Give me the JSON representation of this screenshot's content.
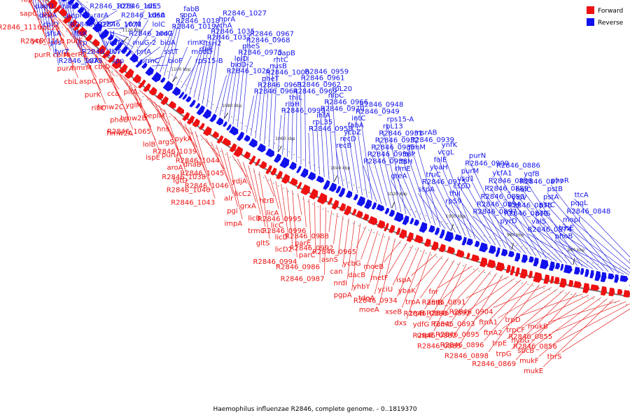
{
  "caption": "Haemophilus influenzae R2846, complete genome. - 0..1819370",
  "colors": {
    "forward": "#ee1111",
    "reverse": "#1111ee",
    "backbone": "#777777",
    "link_forward": "#e82020",
    "link_reverse": "#2a2ae0"
  },
  "legend": [
    {
      "label": "Forward",
      "color": "#ee1111"
    },
    {
      "label": "Reverse",
      "color": "#1111ee"
    }
  ],
  "ticks": [
    "1160 kbp",
    "1140 kbp",
    "1120 kbp",
    "1100 kbp",
    "1080 kbp",
    "1060 kbp",
    "1040 kbp",
    "1020 kbp",
    "1000 kbp",
    "980 kbp",
    "960 kbp",
    "940 kbp",
    "920 kbp"
  ],
  "reverse_labels": [
    "dapD",
    "dedA",
    "cbiO",
    "sfsA",
    "pfs",
    "tyrZ",
    "R2846_1075",
    "radA",
    "pepN",
    "R2846_1077",
    "ftsK",
    "lrp",
    "R2846_1076",
    "lolA",
    "R2846_1078",
    "rarA",
    "R2846_1071",
    "ilvH",
    "yecM",
    "ilvI",
    "lpp",
    "R2846_1055",
    "R2846_1060",
    "yfcM",
    "R2846_1047",
    "muG-2",
    "prfA",
    "prmC",
    "lolE",
    "kdsA",
    "lolC",
    "aroG",
    "bioA",
    "sstT",
    "bioF",
    "R2846_1019",
    "R2846_1018",
    "sppA",
    "fabB",
    "rimK",
    "modD",
    "rpS15-B",
    "rfaE",
    "ftsH2",
    "R2846_1037",
    "R2846_1035",
    "ychA",
    "hprA",
    "R2846_1027",
    "R2846_1026",
    "bioD-2",
    "lolD",
    "R2846_0975",
    "pheS",
    "R2846_0968",
    "R2846_0967",
    "R2846_0964",
    "R2846_0963",
    "pheT",
    "R2846_1000",
    "nusB",
    "rhtC",
    "dapB",
    "R2846_0999",
    "ribH",
    "thiL",
    "R2846_0969",
    "R2846_0962",
    "R2846_0961",
    "R2846_0959",
    "R2846_0958",
    "rpL35",
    "ihfA",
    "R2846_0970",
    "R2846_0966",
    "nlpC",
    "rpL20",
    "recB",
    "recD",
    "ycbZ",
    "fabA",
    "intC",
    "R2846_0949",
    "R2846_0948",
    "R2846_0938",
    "R2846_0936",
    "R2846_0935",
    "R2846_0932",
    "R2846_0931",
    "rpL13",
    "rps15-A",
    "greA",
    "rlmE",
    "ftsH",
    "folP",
    "glmM",
    "R2846_0939",
    "msrAB",
    "sspA",
    "R2846_0915",
    "truC",
    "yoaH",
    "folE",
    "vcgL",
    "ynfK",
    "rpS9",
    "thiI",
    "cspD",
    "usg1",
    "purM",
    "R2846_0900",
    "purN",
    "R2846_0897",
    "R2846_0894",
    "R2846_0890",
    "R2846_0889",
    "R2846_0888",
    "ycfA1",
    "R2846_0886",
    "pyrD",
    "R2846_0879",
    "R2846_0876",
    "yciV",
    "holC",
    "R2846_0877",
    "yqfB",
    "R2846_0874",
    "valS",
    "pstS",
    "pstC",
    "pstA",
    "pstB",
    "phoR",
    "phoB",
    "tusE",
    "mopI",
    "R2846_0848",
    "pqqL",
    "ttcA"
  ],
  "forward_labels": [
    "lctP",
    "fbp",
    "sapC",
    "R2846_1116",
    "ycjX",
    "purR",
    "ppc",
    "rpL25",
    "R2846_1110",
    "cbiM",
    "purA",
    "cbiL",
    "purE",
    "merR2",
    "hmrM",
    "aspC",
    "purK",
    "ribC",
    "cbiQ",
    "prsA",
    "cca",
    "hmw2C",
    "phoU",
    "hmw2A",
    "pitA",
    "yglM",
    "hmw2B",
    "R2846_1065",
    "lolB",
    "ispE",
    "bepIM",
    "hns",
    "argS",
    "purU",
    "aroA",
    "lgtD",
    "pykA",
    "R2846_1039",
    "dnaB",
    "R2846_1038",
    "R2846_1040",
    "R2846_1043",
    "R2846_1044",
    "R2846_1045",
    "R2846_1046",
    "alr",
    "pgi",
    "impA",
    "ydjA",
    "licC2",
    "grxA",
    "licB",
    "trmC",
    "gltS",
    "htrB",
    "licA",
    "licC",
    "licD",
    "licD2",
    "R2846_0994",
    "R2846_0995",
    "R2846_0996",
    "parE",
    "parC",
    "R2846_0986",
    "R2846_0987",
    "R2846_0988",
    "R2846_0992",
    "asnS",
    "can",
    "nrdI",
    "pgpA",
    "R2846_0965",
    "ycbG",
    "dacB",
    "yhbY",
    "tdeA",
    "moeA",
    "moeB",
    "metF",
    "yciU",
    "R2846_0934",
    "xseB",
    "dxs",
    "ispA",
    "ybaK",
    "trpA",
    "trpB",
    "ydfG",
    "uspE",
    "fnr",
    "antB",
    "R2846_0880",
    "fumC",
    "R2846_0882",
    "R2846_0885",
    "R2846_0891",
    "R2846_0892",
    "R2846_0893",
    "R2846_0895",
    "R2846_0896",
    "R2846_0898",
    "R2846_0904",
    "ftnA1",
    "ftnA2",
    "trpE",
    "trpG",
    "R2846_0869",
    "trpD",
    "trpCF",
    "hybG",
    "sbcB",
    "mukF",
    "mukE",
    "mukB",
    "R2846_0855",
    "R2846_0856",
    "thrS"
  ]
}
